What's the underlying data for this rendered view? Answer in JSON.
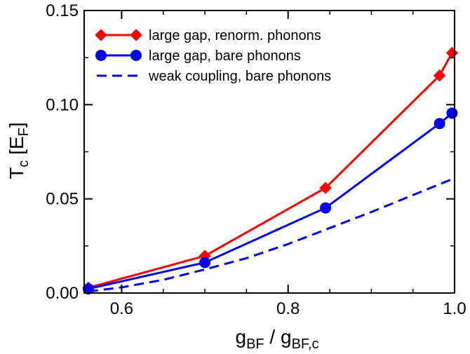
{
  "chart_data": {
    "type": "line",
    "title": "",
    "xlabel": {
      "main": "g",
      "sub1": "BF",
      "sep": " / g",
      "sub2": "BF,c"
    },
    "ylabel": {
      "main": "T",
      "sub": "c",
      "unit_open": " [E",
      "unit_sub": "F",
      "unit_close": "]"
    },
    "xlim": [
      0.555,
      1.0
    ],
    "ylim": [
      0.0,
      0.15
    ],
    "xticks": [
      0.6,
      0.8,
      1.0
    ],
    "xtick_labels": [
      "0.6",
      "0.8",
      "1.0"
    ],
    "yticks": [
      0.0,
      0.05,
      0.1,
      0.15
    ],
    "ytick_labels": [
      "0.00",
      "0.05",
      "0.10",
      "0.15"
    ],
    "grid": false,
    "legend_position": "top-left",
    "series": [
      {
        "name": "large gap, renorm. phonons",
        "color": "#ff0000",
        "marker": "diamond",
        "line": "solid",
        "x": [
          0.56,
          0.7,
          0.845,
          0.982,
          0.997
        ],
        "y": [
          0.0028,
          0.0197,
          0.0558,
          0.1155,
          0.1275
        ]
      },
      {
        "name": "large gap, bare phonons",
        "color": "#0000ee",
        "marker": "circle",
        "line": "solid",
        "x": [
          0.56,
          0.7,
          0.845,
          0.982,
          0.997
        ],
        "y": [
          0.0022,
          0.0162,
          0.0452,
          0.09,
          0.0955
        ]
      },
      {
        "name": "weak coupling, bare phonons",
        "color": "#0000ee",
        "marker": "none",
        "line": "dashed",
        "x": [
          0.56,
          0.6,
          0.65,
          0.7,
          0.75,
          0.8,
          0.85,
          0.9,
          0.95,
          1.0
        ],
        "y": [
          0.0008,
          0.003,
          0.007,
          0.0125,
          0.0185,
          0.026,
          0.0345,
          0.043,
          0.052,
          0.061
        ]
      }
    ]
  }
}
